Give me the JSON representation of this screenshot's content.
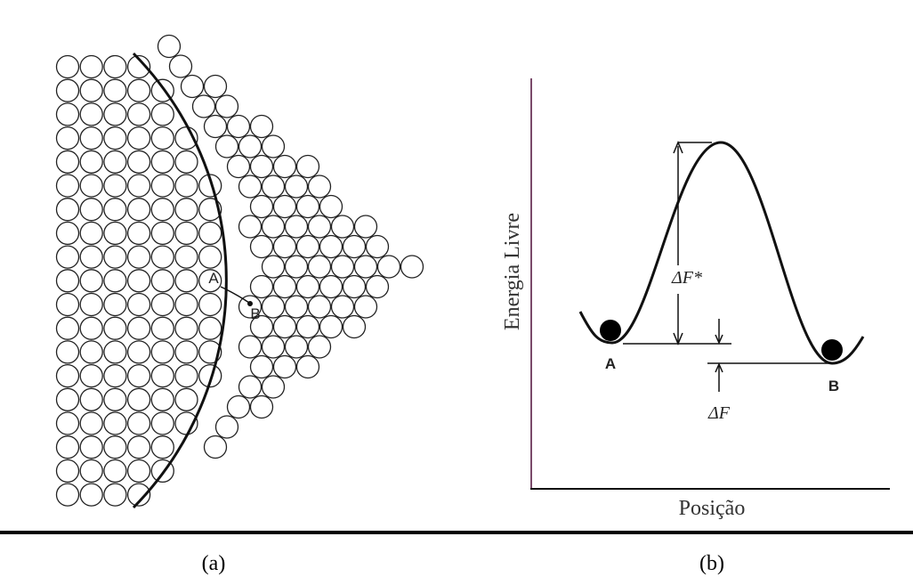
{
  "panel_a": {
    "label": "(a)",
    "atom_a": "A",
    "atom_b": "B"
  },
  "panel_b": {
    "label": "(b)",
    "y_axis": "Energia Livre",
    "x_axis": "Posição",
    "state_a": "A",
    "state_b": "B",
    "barrier": "ΔF*",
    "difference": "ΔF"
  }
}
